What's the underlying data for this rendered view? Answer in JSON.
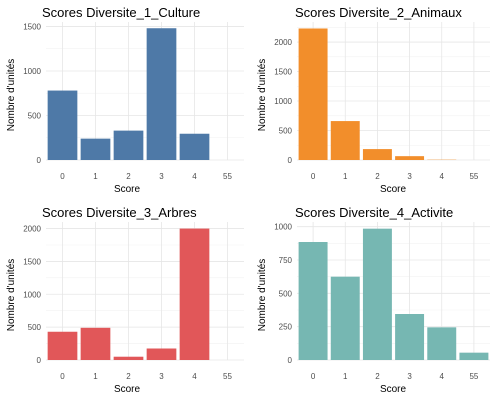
{
  "chart_data": [
    {
      "type": "bar",
      "title": "Scores Diversite_1_Culture",
      "xlabel": "Score",
      "ylabel": "Nombre d'unités",
      "categories": [
        "0",
        "1",
        "2",
        "3",
        "4",
        "55"
      ],
      "values": [
        780,
        240,
        330,
        1480,
        295,
        0
      ],
      "color": "#4e79a7",
      "ylim": [
        0,
        1550
      ],
      "yticks": [
        0,
        500,
        1000,
        1500
      ],
      "grid": true
    },
    {
      "type": "bar",
      "title": "Scores Diversite_2_Animaux",
      "xlabel": "Score",
      "ylabel": "Nombre d'unités",
      "categories": [
        "0",
        "1",
        "2",
        "3",
        "4",
        "55"
      ],
      "values": [
        2230,
        660,
        185,
        65,
        5,
        0
      ],
      "color": "#f28e2b",
      "ylim": [
        0,
        2340
      ],
      "yticks": [
        0,
        500,
        1000,
        1500,
        2000
      ],
      "grid": true
    },
    {
      "type": "bar",
      "title": "Scores Diversite_3_Arbres",
      "xlabel": "Score",
      "ylabel": "Nombre d'unités",
      "categories": [
        "0",
        "1",
        "2",
        "3",
        "4",
        "55"
      ],
      "values": [
        430,
        490,
        50,
        175,
        2000,
        0
      ],
      "color": "#e15759",
      "ylim": [
        0,
        2100
      ],
      "yticks": [
        0,
        500,
        1000,
        1500,
        2000
      ],
      "grid": true
    },
    {
      "type": "bar",
      "title": "Scores Diversite_4_Activite",
      "xlabel": "Score",
      "ylabel": "Nombre d'unités",
      "categories": [
        "0",
        "1",
        "2",
        "3",
        "4",
        "55"
      ],
      "values": [
        885,
        625,
        985,
        345,
        245,
        55
      ],
      "color": "#76b7b2",
      "ylim": [
        0,
        1035
      ],
      "yticks": [
        0,
        250,
        500,
        750,
        1000
      ],
      "grid": true
    }
  ]
}
